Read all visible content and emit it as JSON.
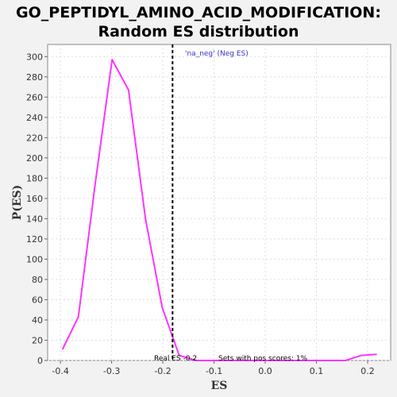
{
  "header": {
    "title_line1": "GO_PEPTIDYL_AMINO_ACID_MODIFICATION:",
    "title_line2": "Random ES distribution"
  },
  "chart_data": {
    "type": "line",
    "xlabel": "ES",
    "ylabel": "P(ES)",
    "xlim": [
      -0.425,
      0.245
    ],
    "ylim": [
      0,
      312
    ],
    "xticks": [
      -0.4,
      -0.3,
      -0.2,
      -0.1,
      0.0,
      0.1,
      0.2
    ],
    "xtick_labels": [
      "-0.4",
      "-0.3",
      "-0.2",
      "-0.1",
      "0.0",
      "0.1",
      "0.2"
    ],
    "yticks": [
      0,
      20,
      40,
      60,
      80,
      100,
      120,
      140,
      160,
      180,
      200,
      220,
      240,
      260,
      280,
      300
    ],
    "grid": true,
    "series": [
      {
        "name": "'na_neg' (Neg ES)",
        "color": "#ff33ff",
        "x": [
          -0.396,
          -0.365,
          -0.332,
          -0.299,
          -0.267,
          -0.234,
          -0.201,
          -0.168,
          -0.135,
          -0.102,
          -0.069,
          -0.036,
          -0.003,
          0.03,
          0.063,
          0.096,
          0.128,
          0.157,
          0.188,
          0.218
        ],
        "y": [
          11,
          43,
          175,
          297,
          267,
          140,
          52,
          5,
          0,
          0,
          0,
          0,
          0,
          0,
          0,
          0,
          0,
          0,
          5,
          6
        ]
      }
    ],
    "vline": {
      "x": -0.181,
      "color": "#000000",
      "style": "dashed"
    },
    "annotations": {
      "legend": "'na_neg' (Neg ES)",
      "real_es": "Real ES -0.2",
      "pos_sets": "Sets with pos scores: 1%"
    },
    "colors": {
      "plot_background": "#ffffff",
      "line": "#ff33ff",
      "legend_text": "#3333cc"
    }
  }
}
